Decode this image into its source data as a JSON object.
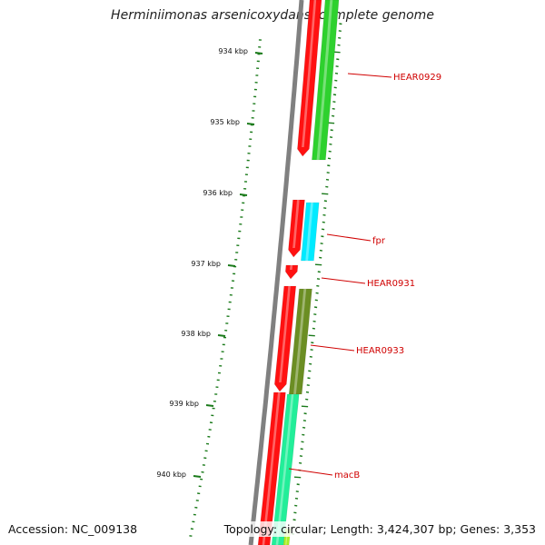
{
  "map": {
    "title": "Herminiimonas arsenicoxydans, complete genome",
    "accession": "Accession: NC_009138",
    "summary": "Topology: circular; Length: 3,424,307 bp; Genes: 3,353"
  },
  "ruler": {
    "labels": [
      "934 kbp",
      "935 kbp",
      "936 kbp",
      "937 kbp",
      "938 kbp",
      "939 kbp",
      "940 kbp"
    ]
  },
  "genes": [
    {
      "name": "HEAR0929"
    },
    {
      "name": "fpr"
    },
    {
      "name": "HEAR0931"
    },
    {
      "name": "HEAR0933"
    },
    {
      "name": "macB"
    }
  ],
  "colors": {
    "backbone": "#808080",
    "tick": "#1a7a1a",
    "forward_strand": "#ff1111",
    "label": "#d00000",
    "gene_fills": [
      "#2ed12e",
      "#00eaff",
      "#6b8e23",
      "#22ee99"
    ]
  }
}
